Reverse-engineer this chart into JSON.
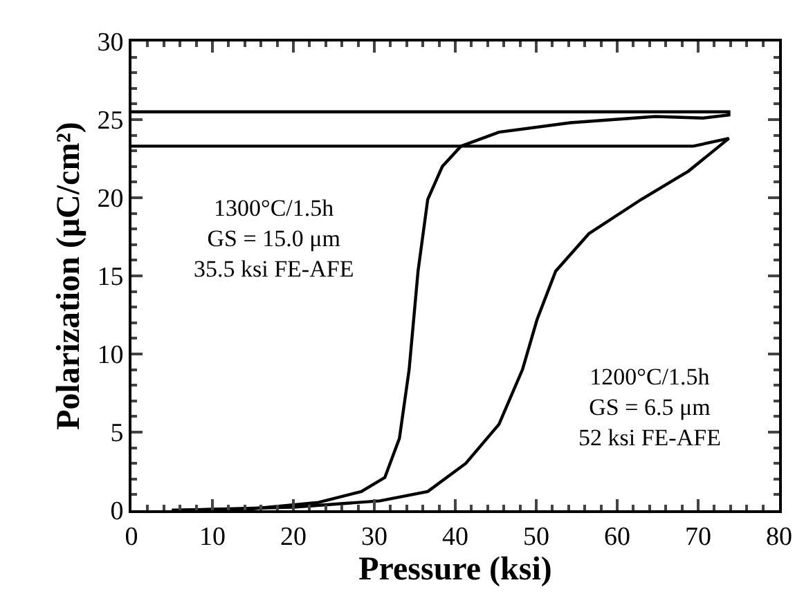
{
  "chart_data": {
    "type": "line",
    "xlabel": "Pressure (ksi)",
    "ylabel": "Polarization (μC/cm²)",
    "xlim": [
      0,
      80
    ],
    "xticks": [
      0,
      10,
      20,
      30,
      40,
      50,
      60,
      70,
      80
    ],
    "ylim": [
      0,
      30
    ],
    "yticks": [
      0,
      5,
      10,
      15,
      20,
      25,
      30
    ],
    "grid": false,
    "marker": "none",
    "line_style": "solid",
    "series": [
      {
        "color": "#000000",
        "x": [
          5,
          15,
          23.1,
          28.4,
          31.3,
          33.1,
          34.3,
          35.4,
          36.6,
          38.4,
          40.7,
          45.4,
          54.2,
          64.7,
          70.6,
          73.8,
          73.8,
          0
        ],
        "values": [
          0,
          0.1,
          0.5,
          1.2,
          2.1,
          4.6,
          9,
          15.3,
          19.9,
          22,
          23.3,
          24.2,
          24.8,
          25.2,
          25.1,
          25.3,
          25.5,
          25.5
        ]
      },
      {
        "color": "#000000",
        "x": [
          5,
          20,
          30.7,
          36.6,
          41.3,
          45.4,
          48.3,
          50.1,
          52.4,
          56.5,
          63,
          68.8,
          73.8,
          69.4,
          60,
          0
        ],
        "values": [
          0,
          0.2,
          0.6,
          1.2,
          3,
          5.5,
          9,
          12.2,
          15.3,
          17.7,
          19.9,
          21.7,
          23.8,
          23.3,
          23.3,
          23.3
        ]
      }
    ],
    "annotations": [
      "1300°C/1.5h\nGS = 15.0 μm\n35.5 ksi FE-AFE",
      "1200°C/1.5h\nGS = 6.5 μm\n52 ksi FE-AFE"
    ]
  }
}
